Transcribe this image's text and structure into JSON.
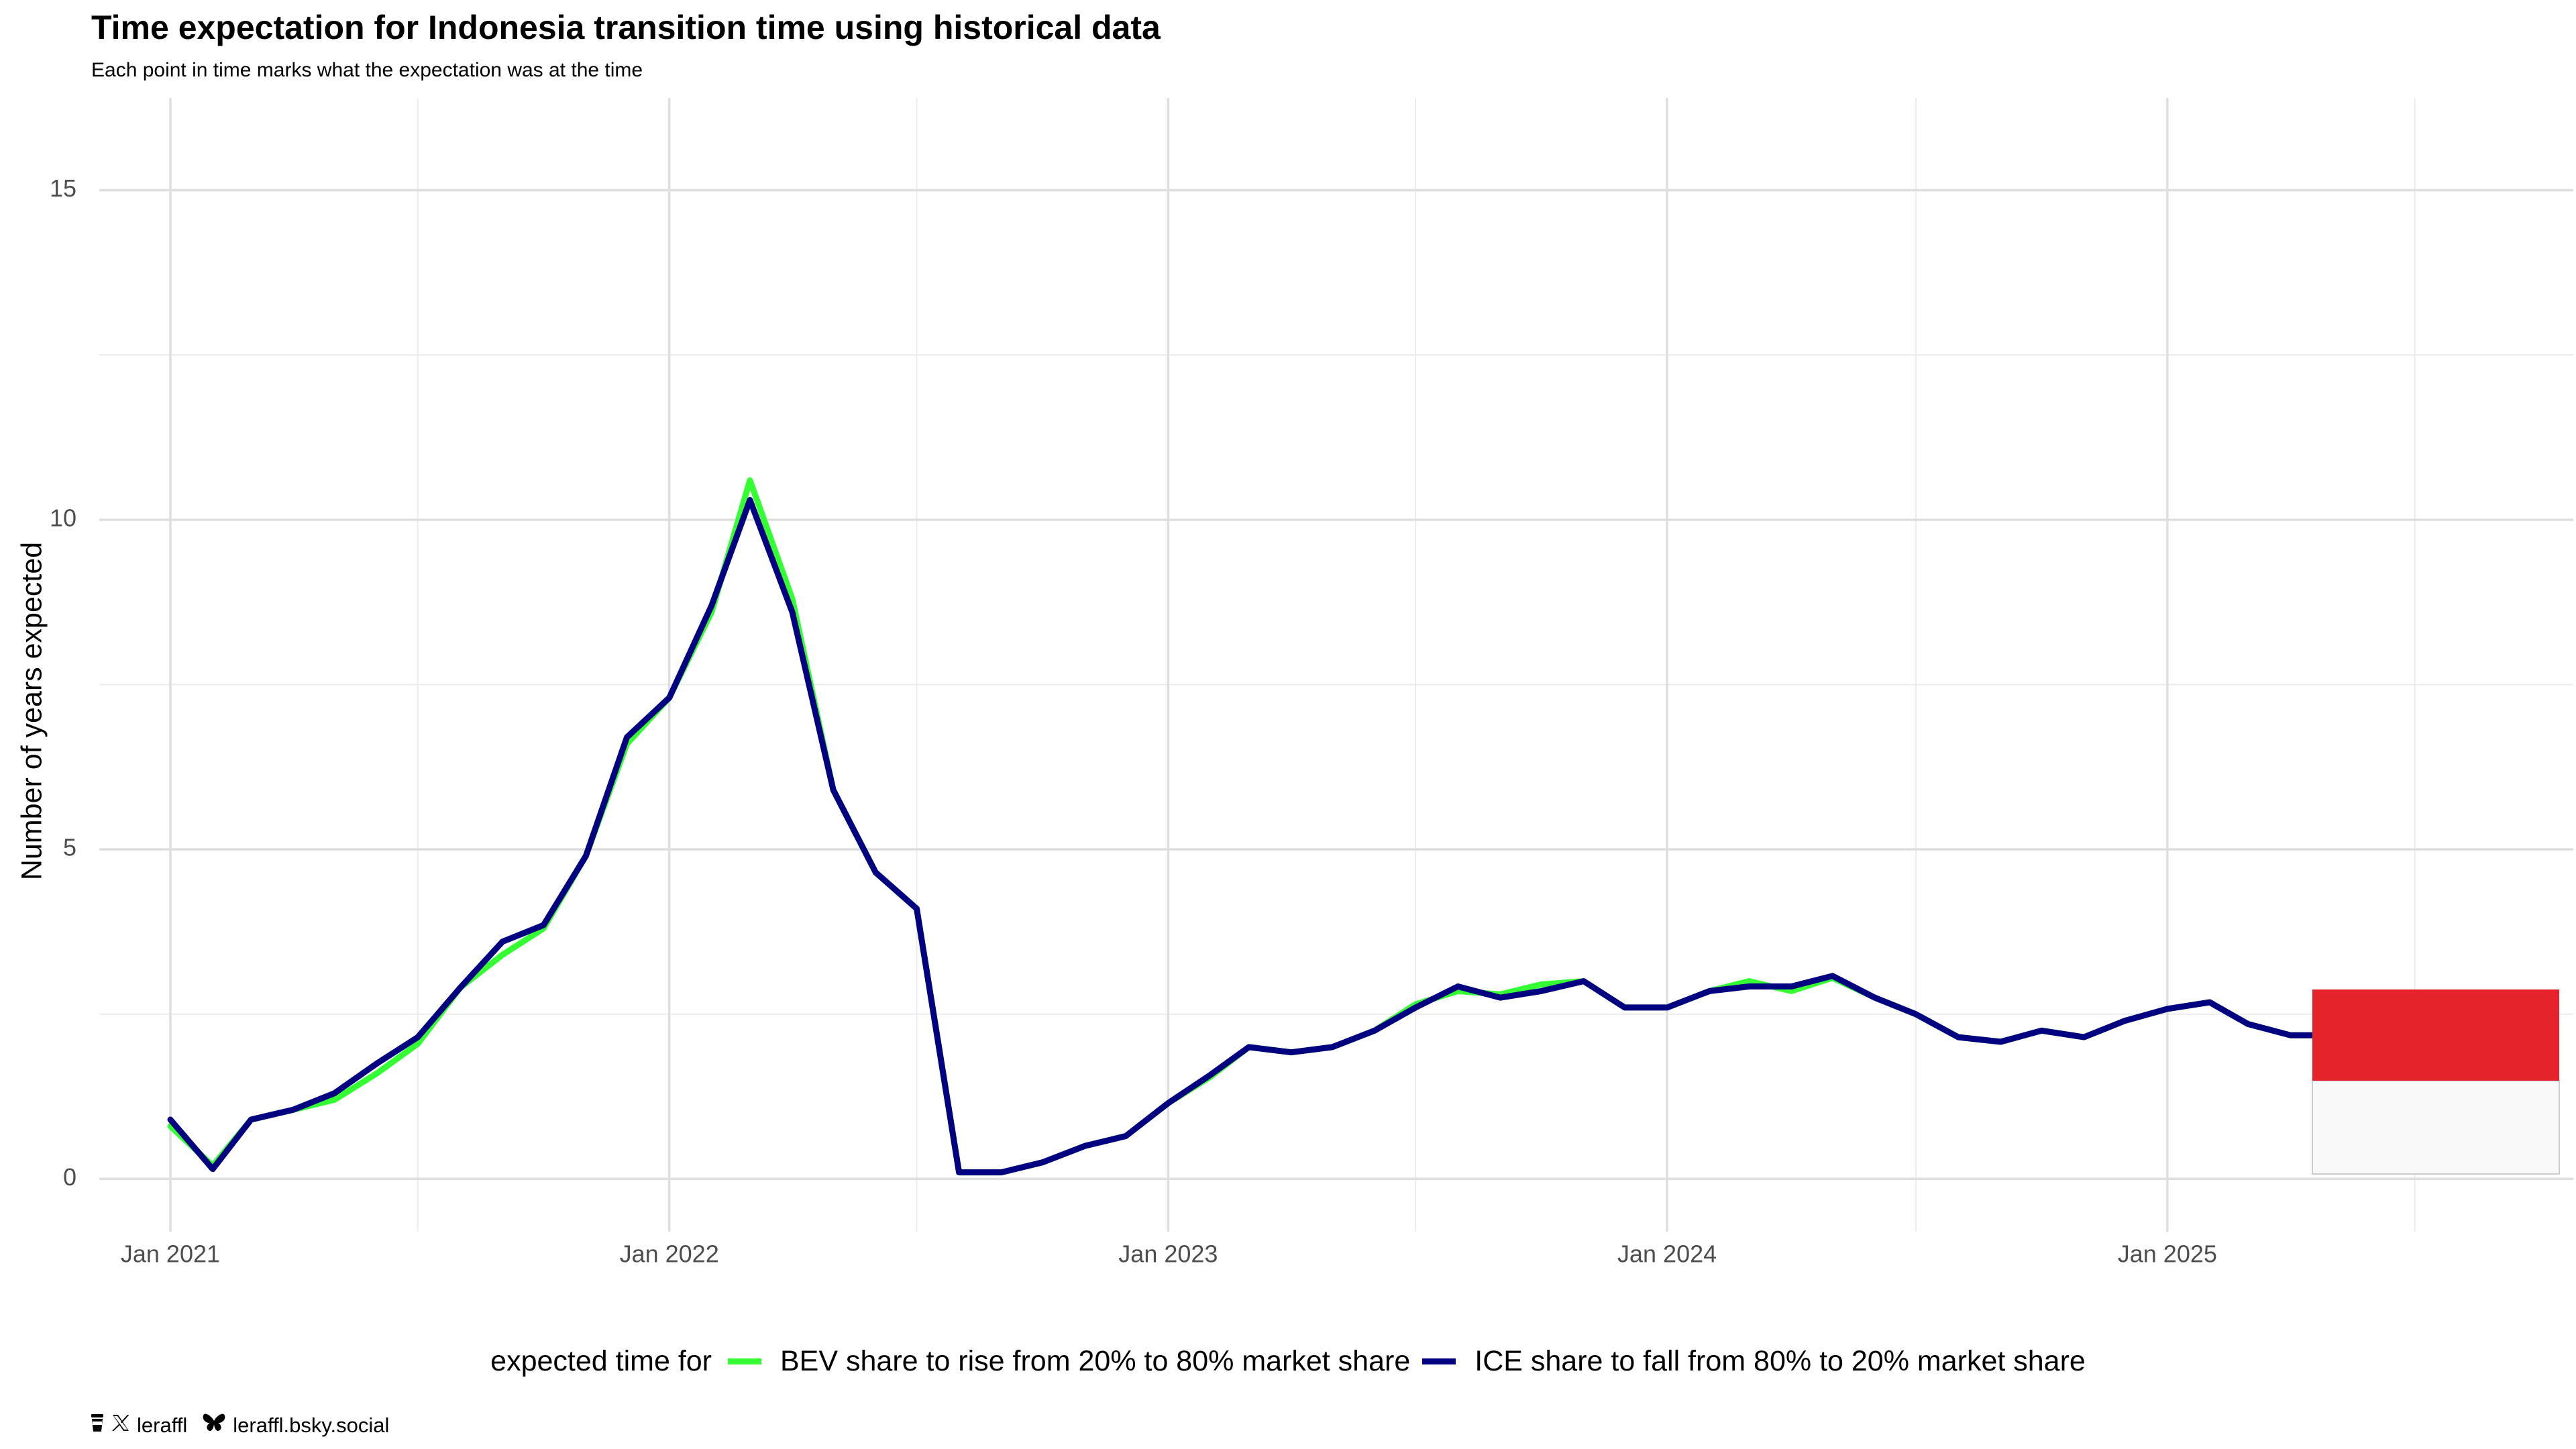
{
  "chart_data": {
    "type": "line",
    "title": "Time expectation for Indonesia transition time using historical data",
    "subtitle": "Each point in time marks what the expectation was at the time",
    "ylabel": "Number of years expected",
    "xlabel": "",
    "ylim": [
      -0.8,
      16.4
    ],
    "xlim": [
      "2020-11-10",
      "2025-10-25"
    ],
    "yticks": [
      0,
      5,
      10,
      15
    ],
    "xticks": [
      {
        "date": "2021-01-01",
        "label": "Jan 2021"
      },
      {
        "date": "2022-01-01",
        "label": "Jan 2022"
      },
      {
        "date": "2023-01-01",
        "label": "Jan 2023"
      },
      {
        "date": "2024-01-01",
        "label": "Jan 2024"
      },
      {
        "date": "2025-01-01",
        "label": "Jan 2025"
      }
    ],
    "minor_x_gridlines": [
      "2021-07-01",
      "2022-07-01",
      "2023-07-01",
      "2024-07-01",
      "2025-07-01"
    ],
    "grid": true,
    "legend_position": "bottom",
    "legend_title": "expected time for",
    "x": [
      "2021-01-01",
      "2021-02-01",
      "2021-03-01",
      "2021-04-01",
      "2021-05-01",
      "2021-06-01",
      "2021-07-01",
      "2021-08-01",
      "2021-09-01",
      "2021-10-01",
      "2021-11-01",
      "2021-12-01",
      "2022-01-01",
      "2022-02-01",
      "2022-03-01",
      "2022-04-01",
      "2022-05-01",
      "2022-06-01",
      "2022-07-01",
      "2022-08-01",
      "2022-09-01",
      "2022-10-01",
      "2022-11-01",
      "2022-12-01",
      "2023-01-01",
      "2023-02-01",
      "2023-03-01",
      "2023-04-01",
      "2023-05-01",
      "2023-06-01",
      "2023-07-01",
      "2023-08-01",
      "2023-09-01",
      "2023-10-01",
      "2023-11-01",
      "2023-12-01",
      "2024-01-01",
      "2024-02-01",
      "2024-03-01",
      "2024-04-01",
      "2024-05-01",
      "2024-06-01",
      "2024-07-01",
      "2024-08-01",
      "2024-09-01",
      "2024-10-01",
      "2024-11-01",
      "2024-12-01",
      "2025-01-01",
      "2025-02-01",
      "2025-03-01",
      "2025-04-01",
      "2025-05-01",
      "2025-06-01"
    ],
    "series": [
      {
        "name": "BEV share to rise from 20% to 80% market share",
        "color": "#33ff33",
        "values": [
          0.8,
          0.2,
          0.9,
          1.05,
          1.2,
          1.6,
          2.05,
          2.9,
          3.4,
          3.8,
          4.9,
          6.6,
          7.3,
          8.6,
          10.6,
          8.8,
          5.9,
          4.65,
          4.1,
          0.1,
          0.1,
          0.25,
          0.5,
          0.65,
          1.15,
          1.55,
          2.0,
          1.92,
          2.0,
          2.25,
          2.65,
          2.85,
          2.8,
          2.95,
          3.0,
          2.6,
          2.6,
          2.85,
          3.0,
          2.85,
          3.05,
          2.75,
          2.5,
          2.15,
          2.08,
          2.25,
          2.15,
          2.4,
          2.58,
          2.68,
          2.35,
          2.18,
          2.18,
          2.18
        ]
      },
      {
        "name": "ICE share to fall from 80% to 20% market share",
        "color": "#000080",
        "values": [
          0.9,
          0.15,
          0.9,
          1.05,
          1.3,
          1.75,
          2.15,
          2.9,
          3.6,
          3.85,
          4.9,
          6.7,
          7.3,
          8.7,
          10.3,
          8.6,
          5.9,
          4.65,
          4.1,
          0.1,
          0.1,
          0.25,
          0.5,
          0.65,
          1.15,
          1.58,
          2.0,
          1.92,
          2.0,
          2.25,
          2.6,
          2.92,
          2.75,
          2.85,
          3.0,
          2.6,
          2.6,
          2.85,
          2.92,
          2.92,
          3.08,
          2.75,
          2.5,
          2.15,
          2.08,
          2.25,
          2.15,
          2.4,
          2.58,
          2.68,
          2.35,
          2.18,
          2.18,
          2.18
        ]
      }
    ]
  },
  "flag": {
    "top_color": "#e5232a",
    "bottom_color": "#f9f9f9",
    "border_color": "#cccccc"
  },
  "footer": {
    "twitter_handle": "leraffl",
    "bluesky_handle": "leraffl.bsky.social",
    "icons": [
      "coffee-cup-icon",
      "x-logo-icon",
      "butterfly-icon"
    ]
  }
}
